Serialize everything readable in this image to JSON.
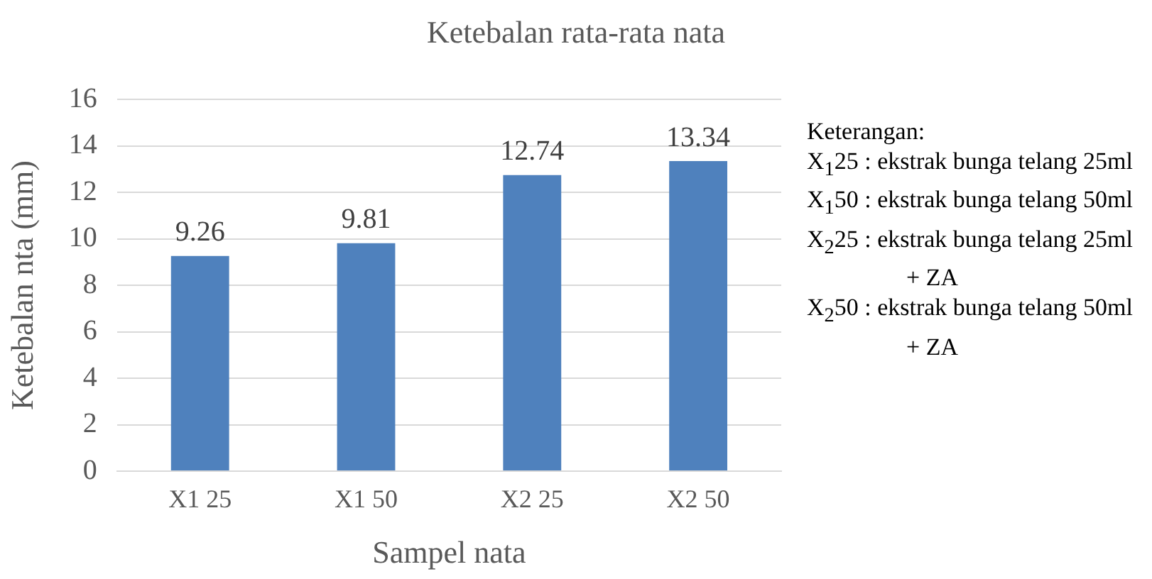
{
  "chart_data": {
    "type": "bar",
    "title": "Ketebalan rata-rata nata",
    "xlabel": "Sampel nata",
    "ylabel": "Ketebalan nta (mm)",
    "categories": [
      "X1 25",
      "X1 50",
      "X2 25",
      "X2 50"
    ],
    "values": [
      9.26,
      9.81,
      12.74,
      13.34
    ],
    "color": "#4f81bd",
    "ylim": [
      0,
      16
    ],
    "yticks": [
      0,
      2,
      4,
      6,
      8,
      10,
      12,
      14,
      16
    ],
    "grid": "y",
    "data_labels": true,
    "legend": false,
    "annotations": [
      "Keterangan:",
      "X$_{1}$25 : ekstrak bunga telang 25ml",
      "X$_{1}$50 : ekstrak bunga telang 50ml",
      "X$_{2}$25 : ekstrak bunga telang 25ml + ZA",
      "X$_{2}$50 : ekstrak bunga telang 50ml + ZA"
    ]
  }
}
